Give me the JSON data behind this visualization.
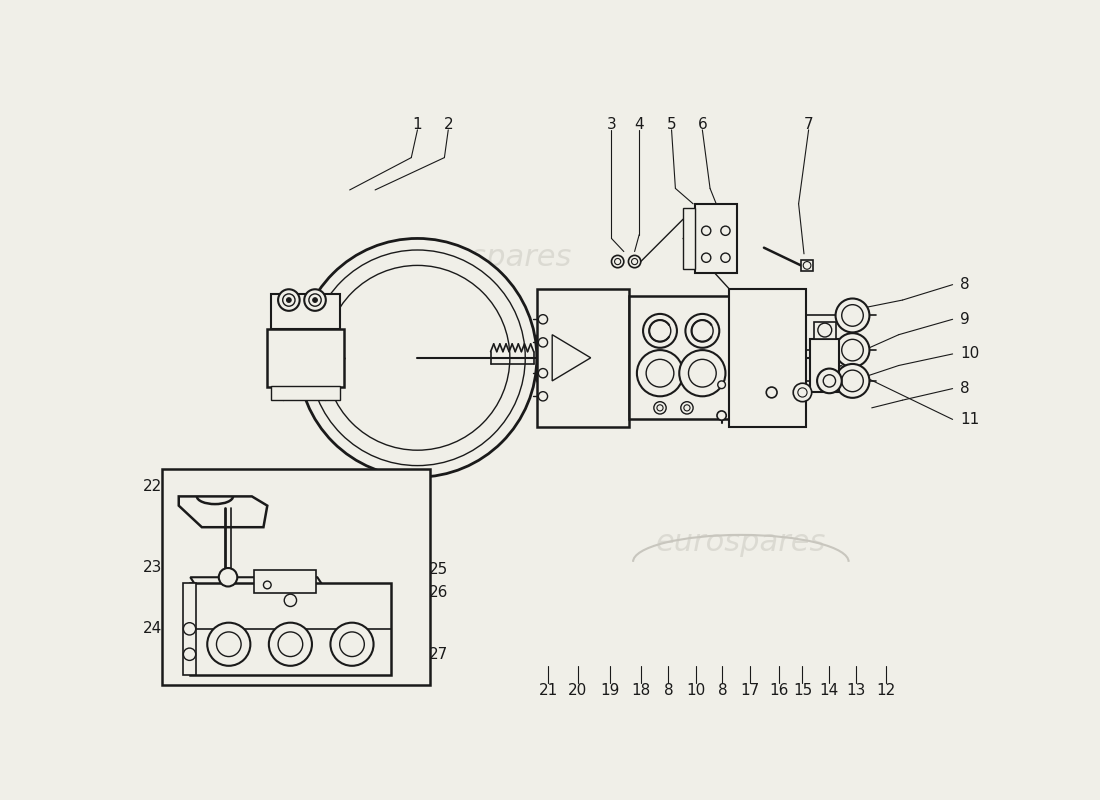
{
  "bg_color": "#f0efe8",
  "line_color": "#1a1a1a",
  "watermark_color": "#c8c6be",
  "watermark_text": "eurospares",
  "fig_width": 11.0,
  "fig_height": 8.0,
  "dpi": 100
}
